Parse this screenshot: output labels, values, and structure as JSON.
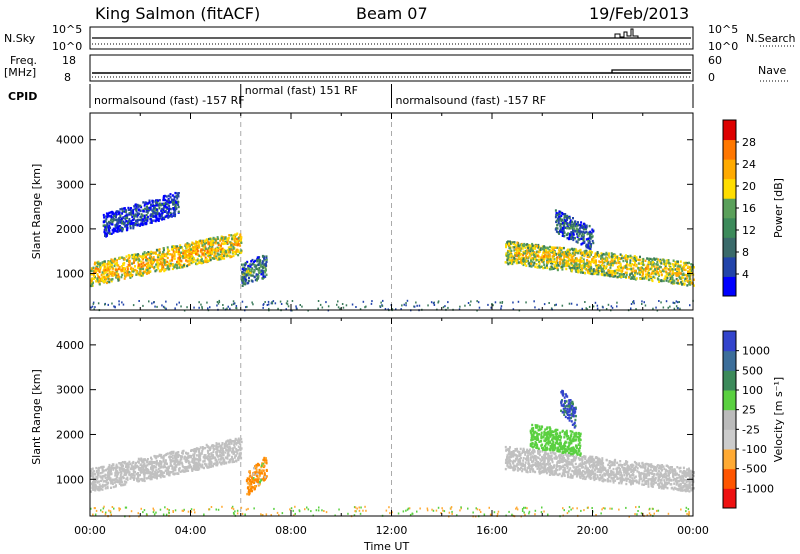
{
  "header": {
    "station": "King Salmon (fitACF)",
    "beam": "Beam 07",
    "date": "19/Feb/2013"
  },
  "strips": {
    "nsky_label": "N.Sky",
    "nsky_ticks": [
      "10^5",
      "10^0"
    ],
    "nsearch_label": "N.Search",
    "nsearch_ticks": [
      "10^5",
      "10^0"
    ],
    "freq_label_1": "Freq.",
    "freq_label_2": "[MHz]",
    "freq_ticks": [
      "18",
      "8"
    ],
    "nave_label": "Nave",
    "nave_ticks": [
      "60",
      "0"
    ],
    "cpid_label": "CPID",
    "cpid_segments": [
      {
        "label": "normalsound (fast) -157 RF",
        "start": 0,
        "end": 6
      },
      {
        "label": "normal (fast) 151 RF",
        "start": 6,
        "end": 12
      },
      {
        "label": "normalsound (fast) -157 RF",
        "start": 12,
        "end": 24
      }
    ]
  },
  "colors": {
    "power_scale": [
      "#0000ff",
      "#2244aa",
      "#3a7a5a",
      "#5aa05a",
      "#ffdd00",
      "#ffaa00",
      "#ff7700",
      "#ff3300",
      "#dd0000"
    ],
    "velocity_scale": [
      "#3344cc",
      "#2a5fa0",
      "#3c8a5a",
      "#5ad040",
      "#bbbbbb",
      "#cccccc",
      "#ffaa33",
      "#ff7700",
      "#ff2200",
      "#dd0000"
    ],
    "gate_dots": "#dd7700"
  },
  "chart_data": [
    {
      "type": "heatmap",
      "panel": "power",
      "ylabel": "Slant Range [km]",
      "xlabel": "",
      "xlim": [
        0,
        24
      ],
      "ylim": [
        180,
        4600
      ],
      "yticks": [
        "1000",
        "2000",
        "3000",
        "4000"
      ],
      "xticks": [
        "00:00",
        "04:00",
        "08:00",
        "12:00",
        "16:00",
        "20:00",
        "00:00"
      ],
      "colorbar": {
        "label": "Power [dB]",
        "ticks": [
          "4",
          "8",
          "12",
          "16",
          "20",
          "24",
          "28"
        ],
        "range": [
          0,
          30
        ]
      },
      "regions": [
        {
          "t0": 0.0,
          "t1": 6.0,
          "r_center_start": 1000,
          "r_center_end": 1700,
          "value": 18
        },
        {
          "t0": 0.5,
          "t1": 3.5,
          "r_center_start": 2100,
          "r_center_end": 2600,
          "value": 6
        },
        {
          "t0": 6.0,
          "t1": 7.0,
          "r_center_start": 1000,
          "r_center_end": 1200,
          "value": 10
        },
        {
          "t0": 16.5,
          "t1": 24.0,
          "r_center_start": 1500,
          "r_center_end": 1000,
          "value": 16
        },
        {
          "t0": 18.5,
          "t1": 20.0,
          "r_center_start": 2200,
          "r_center_end": 1800,
          "value": 8
        }
      ]
    },
    {
      "type": "heatmap",
      "panel": "velocity",
      "ylabel": "Slant Range [km]",
      "xlabel": "Time UT",
      "xlim": [
        0,
        24
      ],
      "ylim": [
        180,
        4600
      ],
      "yticks": [
        "1000",
        "2000",
        "3000",
        "4000"
      ],
      "xticks": [
        "00:00",
        "04:00",
        "08:00",
        "12:00",
        "16:00",
        "20:00",
        "00:00"
      ],
      "colorbar": {
        "label": "Velocity [m s⁻¹]",
        "ticks": [
          "1000",
          "500",
          "100",
          "25",
          "-25",
          "-100",
          "-500",
          "-1000"
        ],
        "range": [
          -1000,
          1000
        ]
      },
      "regions": [
        {
          "t0": 0.0,
          "t1": 6.0,
          "r_center_start": 1000,
          "r_center_end": 1700,
          "value": 0
        },
        {
          "t0": 6.2,
          "t1": 7.0,
          "r_center_start": 900,
          "r_center_end": 1300,
          "value": -150
        },
        {
          "t0": 16.5,
          "t1": 24.0,
          "r_center_start": 1500,
          "r_center_end": 1000,
          "value": 0
        },
        {
          "t0": 17.5,
          "t1": 19.5,
          "r_center_start": 2000,
          "r_center_end": 1800,
          "value": 80
        },
        {
          "t0": 18.7,
          "t1": 19.3,
          "r_center_start": 2800,
          "r_center_end": 2400,
          "value": 600
        }
      ]
    }
  ]
}
